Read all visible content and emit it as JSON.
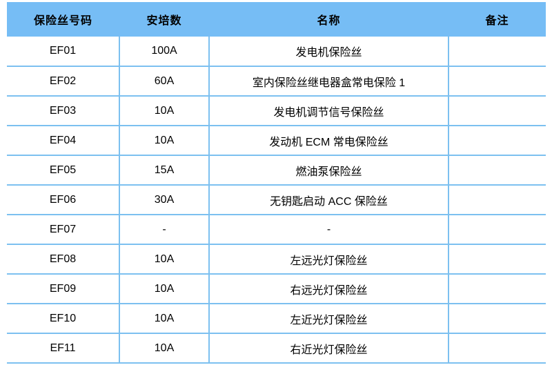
{
  "colors": {
    "header_bg": "#76BDF5",
    "border": "#7CC0F0",
    "text": "#000000"
  },
  "table": {
    "headers": [
      "保险丝号码",
      "安培数",
      "名称",
      "备注"
    ],
    "rows": [
      {
        "code": "EF01",
        "amps": "100A",
        "name": "发电机保险丝",
        "note": ""
      },
      {
        "code": "EF02",
        "amps": "60A",
        "name": "室内保险丝继电器盒常电保险 1",
        "note": ""
      },
      {
        "code": "EF03",
        "amps": "10A",
        "name": "发电机调节信号保险丝",
        "note": ""
      },
      {
        "code": "EF04",
        "amps": "10A",
        "name": "发动机 ECM 常电保险丝",
        "note": ""
      },
      {
        "code": "EF05",
        "amps": "15A",
        "name": "燃油泵保险丝",
        "note": ""
      },
      {
        "code": "EF06",
        "amps": "30A",
        "name": "无钥匙启动 ACC 保险丝",
        "note": ""
      },
      {
        "code": "EF07",
        "amps": "-",
        "name": "-",
        "note": ""
      },
      {
        "code": "EF08",
        "amps": "10A",
        "name": "左远光灯保险丝",
        "note": ""
      },
      {
        "code": "EF09",
        "amps": "10A",
        "name": "右远光灯保险丝",
        "note": ""
      },
      {
        "code": "EF10",
        "amps": "10A",
        "name": "左近光灯保险丝",
        "note": ""
      },
      {
        "code": "EF11",
        "amps": "10A",
        "name": "右近光灯保险丝",
        "note": ""
      }
    ]
  }
}
